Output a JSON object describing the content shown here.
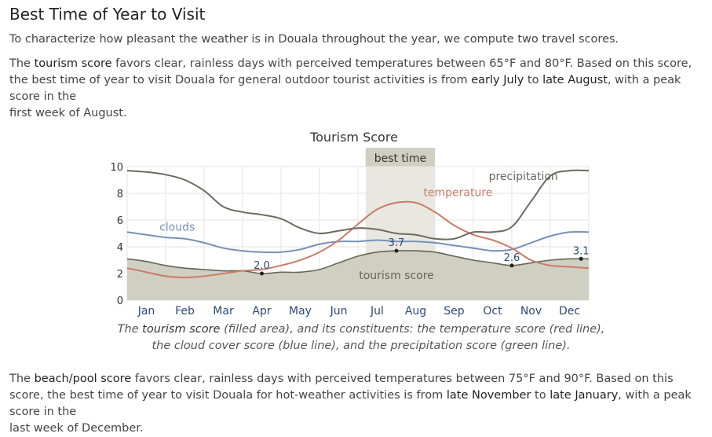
{
  "heading": "Best Time of Year to Visit",
  "intro": "To characterize how pleasant the weather is in Douala throughout the year, we compute two travel scores.",
  "tourism_paragraph": {
    "a": "The ",
    "b": "tourism score",
    "c": " favors clear, rainless days with perceived temperatures between 65°F and 80°F. Based on this score, the best time of year to visit Douala for general outdoor tourist activities is from ",
    "d": "early July",
    "e": " to ",
    "f": "late August",
    "g": ", with a peak score in the ",
    "h": "first week of August",
    "i": "."
  },
  "caption": {
    "a": "The ",
    "b": "tourism score",
    "c": " (filled area), and its constituents: the temperature score (red line), the cloud cover score (blue line), and the precipitation score (green line)."
  },
  "beach_paragraph": {
    "a": "The ",
    "b": "beach/pool score",
    "c": " favors clear, rainless days with perceived temperatures between 75°F and 90°F. Based on this score, the best time of year to visit Douala for hot-weather activities is from ",
    "d": "late November",
    "e": " to ",
    "f": "late January",
    "g": ", with a peak score in the ",
    "h": "last week of December",
    "i": "."
  },
  "chart_data": {
    "type": "area",
    "title": "Tourism Score",
    "best_time_label": "best time",
    "best_time_range": [
      6.2,
      8.0
    ],
    "x_categories": [
      "Jan",
      "Feb",
      "Mar",
      "Apr",
      "May",
      "Jun",
      "Jul",
      "Aug",
      "Sep",
      "Oct",
      "Nov",
      "Dec"
    ],
    "x_range": [
      0,
      12
    ],
    "ylim": [
      0,
      10
    ],
    "y_ticks": [
      "0",
      "2",
      "4",
      "6",
      "8",
      "10"
    ],
    "grid": true,
    "colors": {
      "tourism_fill": "#d0d0c2",
      "tourism_line": "#666655",
      "best_band": "#e8e8e0",
      "best_label_bg": "#d0d0c2",
      "temperature": "#c97b65",
      "clouds": "#7790b8",
      "precipitation": "#6b6b60",
      "grid": "#e3e3e3"
    },
    "series": [
      {
        "name": "tourism score",
        "kind": "area",
        "x": [
          0,
          0.5,
          1,
          1.5,
          2,
          2.5,
          3,
          3.5,
          4,
          4.5,
          5,
          5.5,
          6,
          6.5,
          7,
          7.5,
          8,
          8.5,
          9,
          9.5,
          10,
          10.5,
          11,
          11.5,
          12
        ],
        "values": [
          3.1,
          2.9,
          2.6,
          2.4,
          2.3,
          2.2,
          2.2,
          2.0,
          2.1,
          2.1,
          2.3,
          2.8,
          3.3,
          3.6,
          3.7,
          3.7,
          3.6,
          3.3,
          3.0,
          2.8,
          2.6,
          2.8,
          3.0,
          3.1,
          3.1
        ],
        "label_position": [
          7.0,
          1.6
        ]
      },
      {
        "name": "temperature",
        "kind": "line",
        "x": [
          0,
          0.5,
          1,
          1.5,
          2,
          2.5,
          3,
          3.5,
          4,
          4.5,
          5,
          5.5,
          6,
          6.5,
          7,
          7.5,
          8,
          8.5,
          9,
          9.5,
          10,
          10.5,
          11,
          11.5,
          12
        ],
        "values": [
          2.4,
          2.1,
          1.8,
          1.7,
          1.8,
          2.0,
          2.2,
          2.3,
          2.6,
          3.0,
          3.6,
          4.5,
          5.7,
          6.8,
          7.3,
          7.3,
          6.6,
          5.6,
          4.9,
          4.5,
          3.9,
          3.0,
          2.6,
          2.5,
          2.4
        ],
        "label_position": [
          8.6,
          7.8
        ]
      },
      {
        "name": "clouds",
        "kind": "line",
        "x": [
          0,
          0.5,
          1,
          1.5,
          2,
          2.5,
          3,
          3.5,
          4,
          4.5,
          5,
          5.5,
          6,
          6.5,
          7,
          7.5,
          8,
          8.5,
          9,
          9.5,
          10,
          10.5,
          11,
          11.5,
          12
        ],
        "values": [
          5.1,
          4.9,
          4.7,
          4.6,
          4.3,
          3.9,
          3.7,
          3.6,
          3.6,
          3.8,
          4.2,
          4.4,
          4.4,
          4.5,
          4.4,
          4.4,
          4.3,
          4.1,
          3.9,
          3.7,
          3.8,
          4.3,
          4.8,
          5.1,
          5.1
        ],
        "label_position": [
          1.3,
          5.2
        ]
      },
      {
        "name": "precipitation",
        "kind": "line",
        "x": [
          0,
          0.5,
          1,
          1.5,
          2,
          2.5,
          3,
          3.5,
          4,
          4.5,
          5,
          5.5,
          6,
          6.5,
          7,
          7.5,
          8,
          8.5,
          9,
          9.5,
          10,
          10.5,
          11,
          11.5,
          12
        ],
        "values": [
          9.7,
          9.6,
          9.4,
          9.0,
          8.2,
          7.0,
          6.6,
          6.4,
          6.1,
          5.4,
          5.0,
          5.2,
          5.4,
          5.3,
          5.0,
          4.9,
          4.6,
          4.6,
          5.1,
          5.1,
          5.5,
          7.4,
          9.3,
          9.7,
          9.7
        ],
        "label_position": [
          10.3,
          9.0
        ]
      }
    ],
    "annotations": [
      {
        "label": "2.0",
        "x": 3.5,
        "y": 2.0
      },
      {
        "label": "3.7",
        "x": 7.0,
        "y": 3.7
      },
      {
        "label": "2.6",
        "x": 10.0,
        "y": 2.6
      },
      {
        "label": "3.1",
        "x": 11.8,
        "y": 3.1
      }
    ]
  }
}
